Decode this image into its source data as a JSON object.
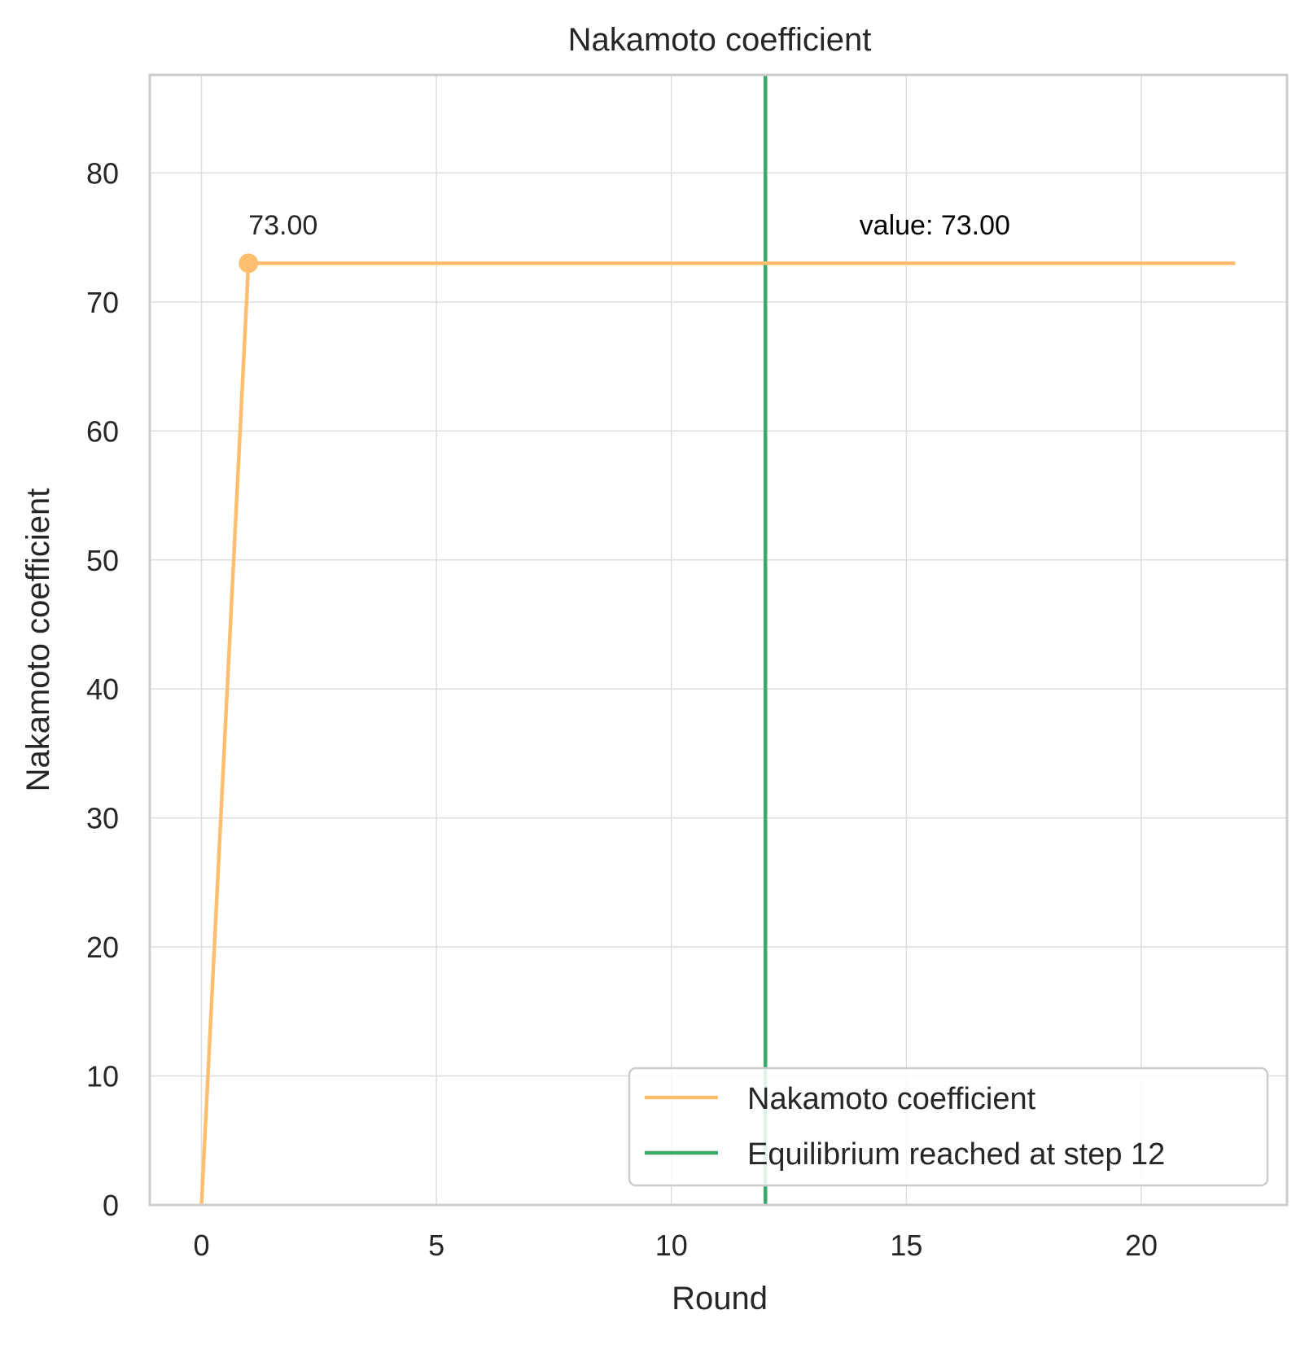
{
  "chart_data": {
    "type": "line",
    "title": "Nakamoto coefficient",
    "xlabel": "Round",
    "ylabel": "Nakamoto coefficient",
    "xlim": [
      -1.1,
      23.1
    ],
    "ylim": [
      0,
      87.6
    ],
    "xticks": [
      0,
      5,
      10,
      15,
      20
    ],
    "yticks": [
      0,
      10,
      20,
      30,
      40,
      50,
      60,
      70,
      80
    ],
    "grid": true,
    "legend_position": "lower-right",
    "series": [
      {
        "name": "Nakamoto coefficient",
        "color": "#fdbf6f",
        "x": [
          0,
          1,
          2,
          3,
          4,
          5,
          6,
          7,
          8,
          9,
          10,
          11,
          12,
          13,
          14,
          15,
          16,
          17,
          18,
          19,
          20,
          21,
          22
        ],
        "y": [
          0,
          73,
          73,
          73,
          73,
          73,
          73,
          73,
          73,
          73,
          73,
          73,
          73,
          73,
          73,
          73,
          73,
          73,
          73,
          73,
          73,
          73,
          73
        ],
        "marker_at_x": 1
      }
    ],
    "vline": {
      "name": "Equilibrium reached at step 12",
      "x": 12,
      "color": "#3aaa6c"
    },
    "annotations": [
      {
        "text": "73.00",
        "x": 1,
        "y": 76
      },
      {
        "text": "value: 73.00",
        "x": 14,
        "y": 76
      }
    ]
  }
}
